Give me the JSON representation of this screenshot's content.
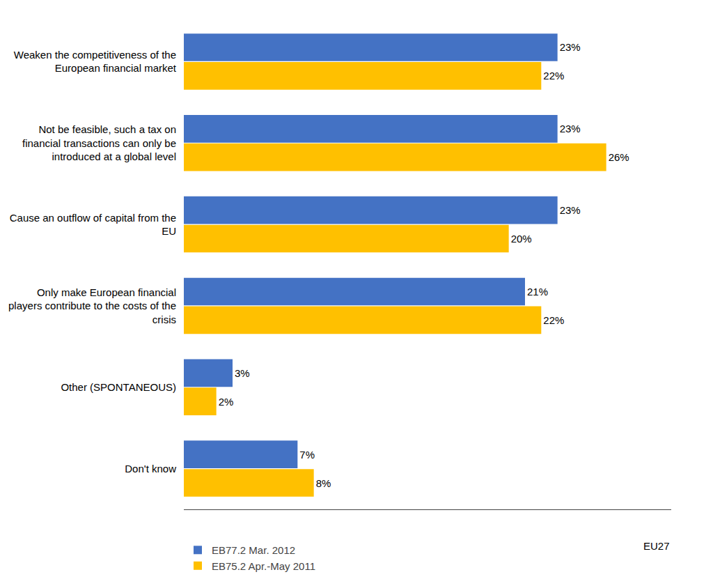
{
  "chart_data": {
    "type": "bar",
    "orientation": "horizontal",
    "categories": [
      "Weaken the competitiveness of the\nEuropean financial market",
      "Not be feasible, such a tax on\nfinancial transactions can only be\nintroduced at a global level",
      "Cause an outflow of capital from the\nEU",
      "Only make European financial\nplayers contribute to the costs of the\ncrisis",
      "Other (SPONTANEOUS)",
      "Don't know"
    ],
    "series": [
      {
        "name": "EB77.2 Mar. 2012",
        "color": "#4472C4",
        "values": [
          23,
          23,
          23,
          21,
          3,
          7
        ],
        "value_labels": [
          "23%",
          "23%",
          "23%",
          "21%",
          "3%",
          "7%"
        ]
      },
      {
        "name": "EB75.2 Apr.-May 2011",
        "color": "#FFC000",
        "values": [
          22,
          26,
          20,
          22,
          2,
          8
        ],
        "value_labels": [
          "22%",
          "26%",
          "20%",
          "22%",
          "2%",
          "8%"
        ]
      }
    ],
    "xlim": [
      0,
      30
    ],
    "xticks": [],
    "tick_labels": "y",
    "grid": false,
    "legend": "lower left",
    "data_labels": true,
    "annotations": [
      "EU27"
    ]
  }
}
